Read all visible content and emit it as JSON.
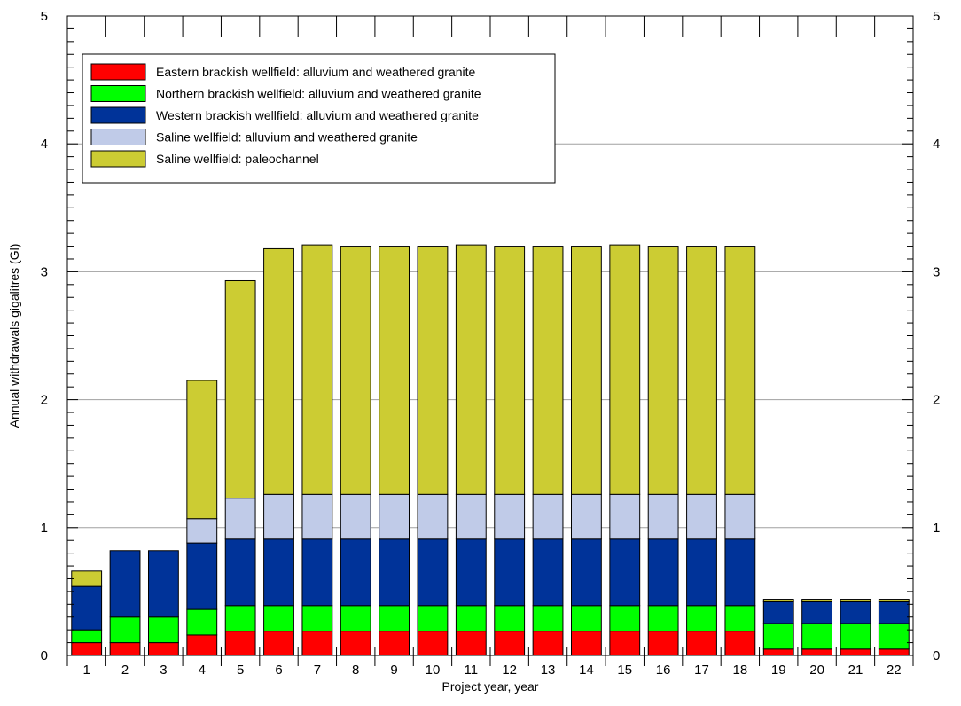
{
  "chart_data": {
    "type": "bar",
    "stacked": true,
    "title": "",
    "xlabel": "Project year, year",
    "ylabel": "Annual withdrawals  gigalitres (Gl)",
    "ylim": [
      0,
      5
    ],
    "yticks": [
      0,
      1,
      2,
      3,
      4,
      5
    ],
    "grid": "horizontal",
    "legend_position": "top-left",
    "categories": [
      "1",
      "2",
      "3",
      "4",
      "5",
      "6",
      "7",
      "8",
      "9",
      "10",
      "11",
      "12",
      "13",
      "14",
      "15",
      "16",
      "17",
      "18",
      "19",
      "20",
      "21",
      "22"
    ],
    "series": [
      {
        "name": "Eastern brackish wellfield: alluvium and weathered granite",
        "color": "#ff0000",
        "values": [
          0.1,
          0.1,
          0.1,
          0.16,
          0.19,
          0.19,
          0.19,
          0.19,
          0.19,
          0.19,
          0.19,
          0.19,
          0.19,
          0.19,
          0.19,
          0.19,
          0.19,
          0.19,
          0.05,
          0.05,
          0.05,
          0.05
        ]
      },
      {
        "name": "Northern brackish wellfield: alluvium and weathered granite",
        "color": "#00ff00",
        "values": [
          0.1,
          0.2,
          0.2,
          0.2,
          0.2,
          0.2,
          0.2,
          0.2,
          0.2,
          0.2,
          0.2,
          0.2,
          0.2,
          0.2,
          0.2,
          0.2,
          0.2,
          0.2,
          0.2,
          0.2,
          0.2,
          0.2
        ]
      },
      {
        "name": "Western brackish wellfield: alluvium and weathered granite",
        "color": "#003399",
        "values": [
          0.34,
          0.52,
          0.52,
          0.52,
          0.52,
          0.52,
          0.52,
          0.52,
          0.52,
          0.52,
          0.52,
          0.52,
          0.52,
          0.52,
          0.52,
          0.52,
          0.52,
          0.52,
          0.17,
          0.17,
          0.17,
          0.17
        ]
      },
      {
        "name": "Saline wellfield: alluvium and weathered granite",
        "color": "#c0cbe8",
        "values": [
          0.0,
          0.0,
          0.0,
          0.19,
          0.32,
          0.35,
          0.35,
          0.35,
          0.35,
          0.35,
          0.35,
          0.35,
          0.35,
          0.35,
          0.35,
          0.35,
          0.35,
          0.35,
          0.0,
          0.0,
          0.0,
          0.0
        ]
      },
      {
        "name": "Saline wellfield: paleochannel",
        "color": "#cccc33",
        "values": [
          0.12,
          0.0,
          0.0,
          1.08,
          1.7,
          1.92,
          1.95,
          1.94,
          1.94,
          1.94,
          1.95,
          1.94,
          1.94,
          1.94,
          1.95,
          1.94,
          1.94,
          1.94,
          0.02,
          0.02,
          0.02,
          0.02
        ]
      }
    ]
  }
}
